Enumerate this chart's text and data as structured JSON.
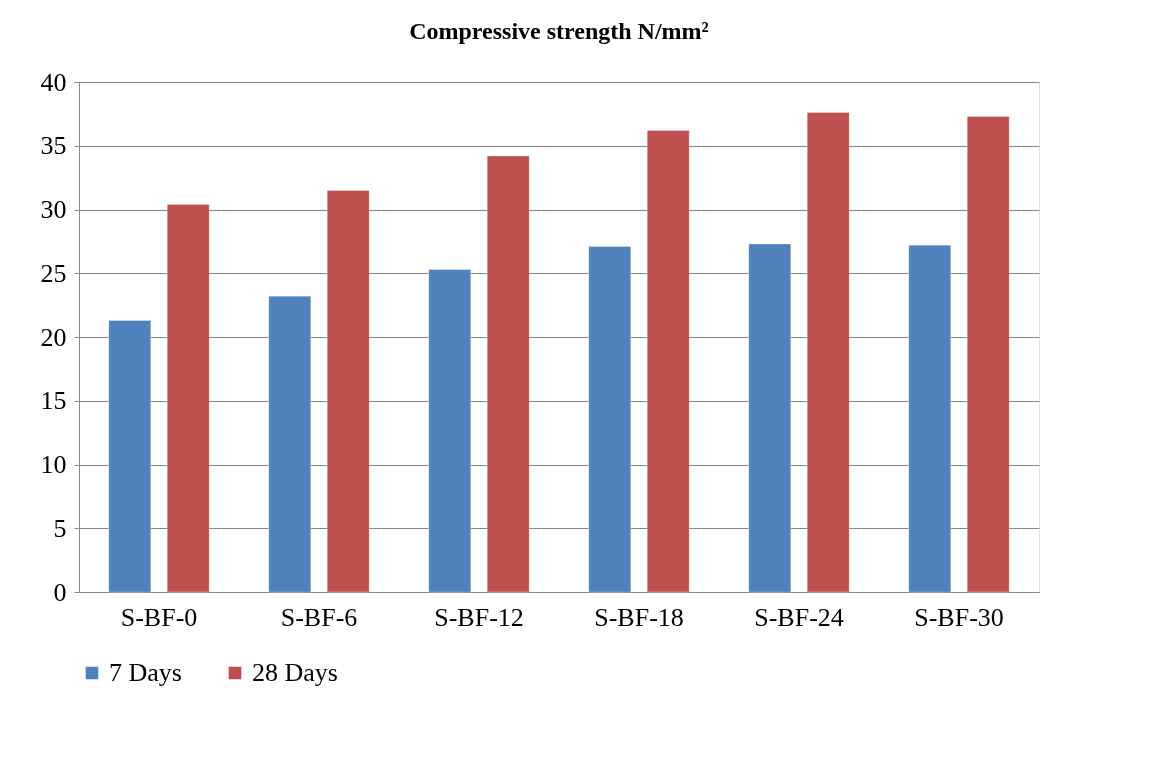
{
  "chart_data": {
    "type": "bar",
    "title": "Compressive strength N/mm²",
    "categories": [
      "S-BF-0",
      "S-BF-6",
      "S-BF-12",
      "S-BF-18",
      "S-BF-24",
      "S-BF-30"
    ],
    "series": [
      {
        "name": "7 Days",
        "color": "#4f81bd",
        "values": [
          21.3,
          23.2,
          25.3,
          27.1,
          27.3,
          27.2
        ]
      },
      {
        "name": "28 Days",
        "color": "#c0504d",
        "values": [
          30.4,
          31.5,
          34.2,
          36.2,
          37.6,
          37.3
        ]
      }
    ],
    "ylim": [
      0,
      40
    ],
    "yticks": [
      0,
      5,
      10,
      15,
      20,
      25,
      30,
      35,
      40
    ],
    "grid": "y",
    "legend": "bottom"
  }
}
